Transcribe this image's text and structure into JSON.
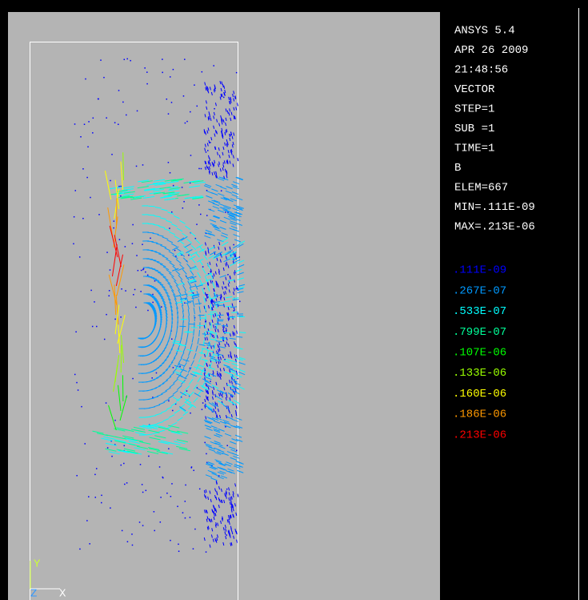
{
  "header": {
    "lines": [
      "ANSYS 5.4",
      "APR 26 2009",
      "21:48:56",
      "VECTOR",
      "STEP=1",
      "SUB =1",
      "TIME=1",
      "B",
      "ELEM=667",
      "MIN=.111E-09",
      "MAX=.213E-06"
    ]
  },
  "legend": {
    "entries": [
      {
        "label": ".111E-09",
        "color": "#0000ff"
      },
      {
        "label": ".267E-07",
        "color": "#0099ff"
      },
      {
        "label": ".533E-07",
        "color": "#00ffff"
      },
      {
        "label": ".799E-07",
        "color": "#00ff99"
      },
      {
        "label": ".107E-06",
        "color": "#00ff00"
      },
      {
        "label": ".133E-06",
        "color": "#99ff00"
      },
      {
        "label": ".160E-06",
        "color": "#ffff00"
      },
      {
        "label": ".186E-06",
        "color": "#ff9900"
      },
      {
        "label": ".213E-06",
        "color": "#ff0000"
      }
    ]
  },
  "triad": {
    "y": "Y",
    "z": "Z",
    "x": "X"
  }
}
